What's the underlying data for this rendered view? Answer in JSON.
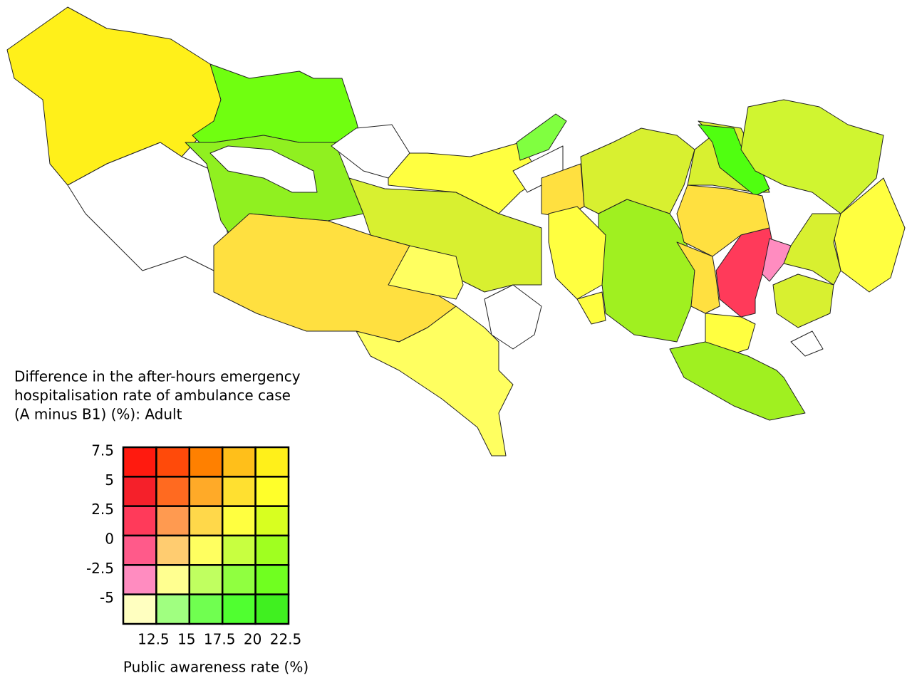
{
  "legend": {
    "title": [
      "Difference in the after-hours emergency",
      "hospitalisation rate of ambulance case",
      "(A minus B1) (%): Adult"
    ],
    "x_label": "Public awareness rate (%)",
    "xlim": [
      10,
      22.5
    ],
    "xticks": [
      12.5,
      15,
      17.5,
      20,
      22.5
    ],
    "ylim": [
      -7.5,
      7.5
    ],
    "yticks": [
      7.5,
      5,
      2.5,
      0,
      -2.5,
      -5
    ],
    "colors": [
      [
        "#ff1a0f",
        "#ff4a0a",
        "#ff8000",
        "#ffbf1a",
        "#fff01a"
      ],
      [
        "#f5202a",
        "#ff6a20",
        "#ffaa28",
        "#ffe030",
        "#ffff2a"
      ],
      [
        "#ff3a5a",
        "#ff9a50",
        "#ffd84a",
        "#ffff40",
        "#d8ff20"
      ],
      [
        "#ff5a8a",
        "#ffcc70",
        "#ffff60",
        "#c8ff40",
        "#a0ff20"
      ],
      [
        "#ff8cc0",
        "#ffff90",
        "#c0ff60",
        "#90ff40",
        "#70ff20"
      ],
      [
        "#ffffc0",
        "#a0ff80",
        "#70ff50",
        "#50ff30",
        "#40f020"
      ]
    ]
  }
}
